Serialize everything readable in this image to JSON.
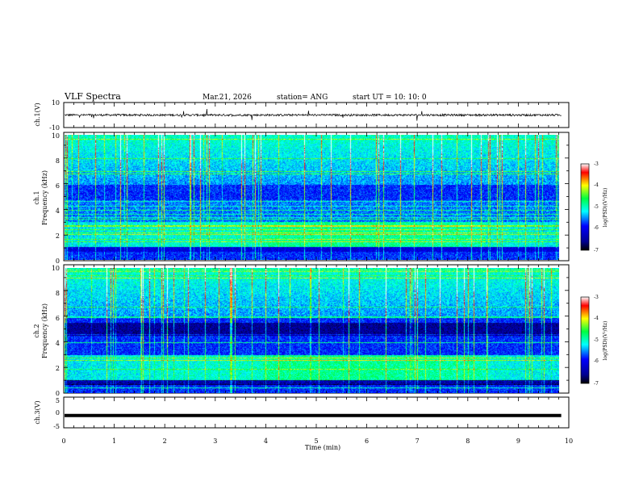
{
  "header": {
    "title": "VLF Spectra",
    "date": "Mar.21, 2026",
    "station": "station= ANG",
    "start": "start  UT =   10: 10: 0"
  },
  "chart_data": [
    {
      "type": "line",
      "name": "ch1-waveform",
      "ylabel": "ch.1(V)",
      "ylim": [
        -10,
        10
      ],
      "yticks": [
        "10",
        "-10"
      ],
      "xlim": [
        0,
        10
      ],
      "description_values": "noise trace around 0 V with spikes"
    },
    {
      "type": "heatmap",
      "name": "ch1-spectrogram",
      "ylabel_channel": "ch.1",
      "ylabel": "Frequency (kHz)",
      "ylim": [
        0,
        10
      ],
      "yticks": [
        "0",
        "2",
        "4",
        "6",
        "8",
        "10"
      ],
      "xlim": [
        0,
        9.85
      ],
      "colorbar": {
        "label": "log(PSD)(V²/Hz)",
        "range": [
          -7,
          -3
        ],
        "ticks": [
          "-3",
          "-4",
          "-5",
          "-6",
          "-7"
        ]
      }
    },
    {
      "type": "heatmap",
      "name": "ch2-spectrogram",
      "ylabel_channel": "ch.2",
      "ylabel": "Frequency (kHz)",
      "ylim": [
        0,
        10
      ],
      "yticks": [
        "0",
        "2",
        "4",
        "6",
        "8",
        "10"
      ],
      "xlim": [
        0,
        9.85
      ],
      "colorbar": {
        "label": "log(PSD)(V²/Hz)",
        "range": [
          -7,
          -3
        ],
        "ticks": [
          "-3",
          "-4",
          "-5",
          "-6",
          "-7"
        ]
      }
    },
    {
      "type": "line",
      "name": "ch3-waveform",
      "ylabel": "ch.3(V)",
      "ylim": [
        -5,
        5
      ],
      "yticks": [
        "5",
        "0",
        "-5"
      ],
      "x": [
        0,
        9.85
      ],
      "y": [
        -1,
        -1
      ]
    }
  ],
  "xaxis": {
    "label": "Time (min)",
    "ticks": [
      "0",
      "1",
      "2",
      "3",
      "4",
      "5",
      "6",
      "7",
      "8",
      "9",
      "10"
    ],
    "range": [
      0,
      10
    ]
  },
  "colors": {
    "scale": [
      "#000080",
      "#0000ff",
      "#00ffff",
      "#00ff00",
      "#ffff00",
      "#ff0000"
    ]
  }
}
